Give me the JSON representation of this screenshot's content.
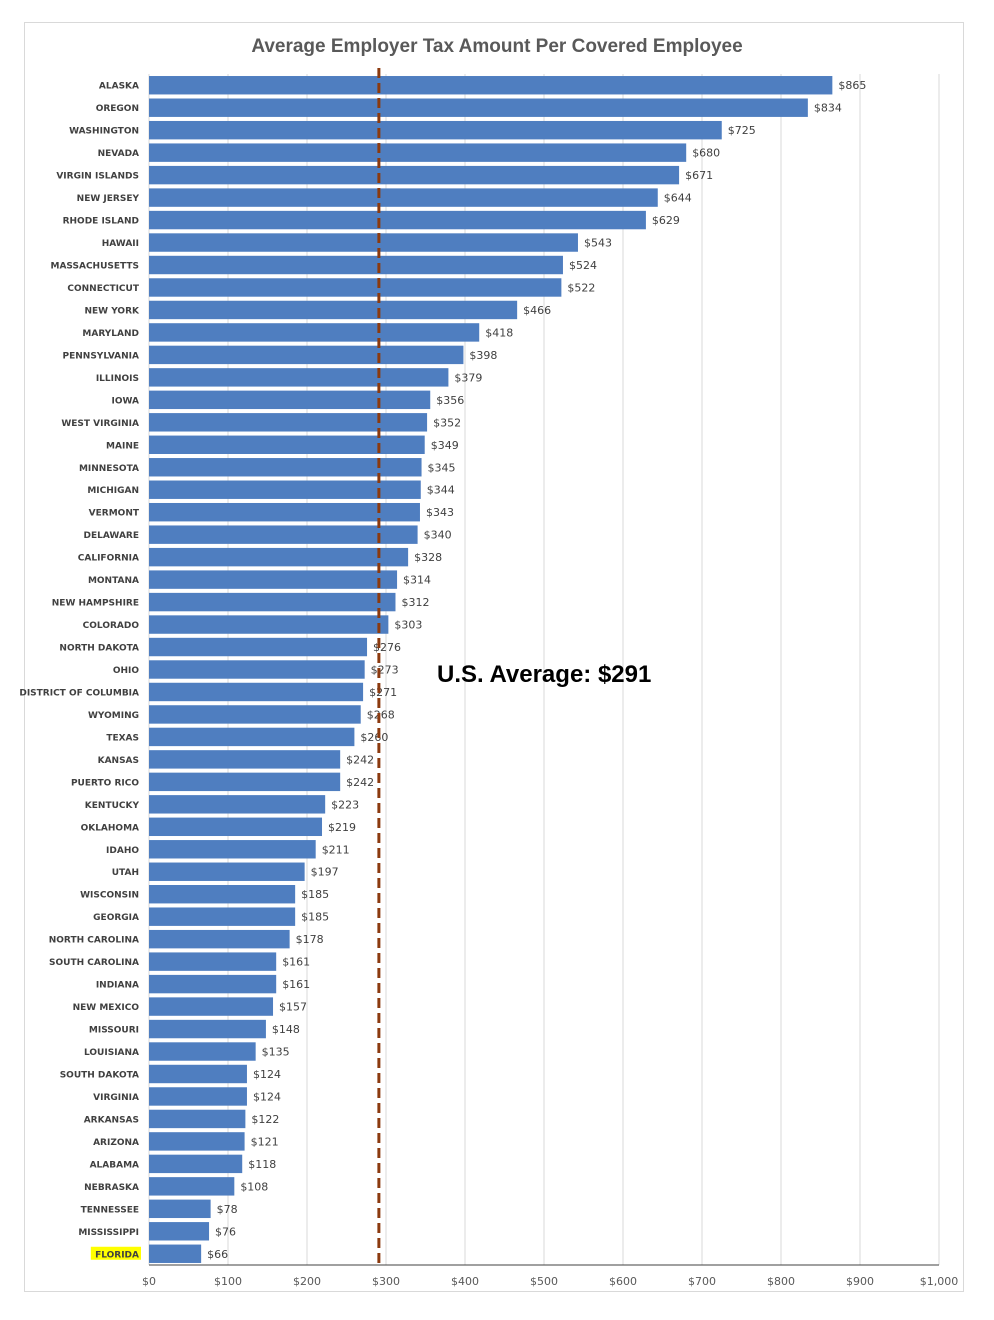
{
  "chart_data": {
    "type": "bar",
    "orientation": "horizontal",
    "title": "Average Employer Tax Amount Per Covered Employee",
    "categories": [
      "ALASKA",
      "OREGON",
      "WASHINGTON",
      "NEVADA",
      "VIRGIN ISLANDS",
      "NEW JERSEY",
      "RHODE ISLAND",
      "HAWAII",
      "MASSACHUSETTS",
      "CONNECTICUT",
      "NEW YORK",
      "MARYLAND",
      "PENNSYLVANIA",
      "ILLINOIS",
      "IOWA",
      "WEST VIRGINIA",
      "MAINE",
      "MINNESOTA",
      "MICHIGAN",
      "VERMONT",
      "DELAWARE",
      "CALIFORNIA",
      "MONTANA",
      "NEW HAMPSHIRE",
      "COLORADO",
      "NORTH DAKOTA",
      "OHIO",
      "DISTRICT OF COLUMBIA",
      "WYOMING",
      "TEXAS",
      "KANSAS",
      "PUERTO RICO",
      "KENTUCKY",
      "OKLAHOMA",
      "IDAHO",
      "UTAH",
      "WISCONSIN",
      "GEORGIA",
      "NORTH CAROLINA",
      "SOUTH CAROLINA",
      "INDIANA",
      "NEW MEXICO",
      "MISSOURI",
      "LOUISIANA",
      "SOUTH DAKOTA",
      "VIRGINIA",
      "ARKANSAS",
      "ARIZONA",
      "ALABAMA",
      "NEBRASKA",
      "TENNESSEE",
      "MISSISSIPPI",
      "FLORIDA"
    ],
    "values": [
      865,
      834,
      725,
      680,
      671,
      644,
      629,
      543,
      524,
      522,
      466,
      418,
      398,
      379,
      356,
      352,
      349,
      345,
      344,
      343,
      340,
      328,
      314,
      312,
      303,
      276,
      273,
      271,
      268,
      260,
      242,
      242,
      223,
      219,
      211,
      197,
      185,
      185,
      178,
      161,
      161,
      157,
      148,
      135,
      124,
      124,
      122,
      121,
      118,
      108,
      78,
      76,
      66
    ],
    "value_labels": [
      "$865",
      "$834",
      "$725",
      "$680",
      "$671",
      "$644",
      "$629",
      "$543",
      "$524",
      "$522",
      "$466",
      "$418",
      "$398",
      "$379",
      "$356",
      "$352",
      "$349",
      "$345",
      "$344",
      "$343",
      "$340",
      "$328",
      "$314",
      "$312",
      "$303",
      "$276",
      "$273",
      "$271",
      "$268",
      "$260",
      "$242",
      "$242",
      "$223",
      "$219",
      "$211",
      "$197",
      "$185",
      "$185",
      "$178",
      "$161",
      "$161",
      "$157",
      "$148",
      "$135",
      "$124",
      "$124",
      "$122",
      "$121",
      "$118",
      "$108",
      "$78",
      "$76",
      "$66"
    ],
    "xlim": [
      0,
      1000
    ],
    "x_ticks": [
      0,
      100,
      200,
      300,
      400,
      500,
      600,
      700,
      800,
      900,
      1000
    ],
    "x_tick_labels": [
      "$0",
      "$100",
      "$200",
      "$300",
      "$400",
      "$500",
      "$600",
      "$700",
      "$800",
      "$900",
      "$1,000"
    ],
    "grid": "vertical",
    "reference_line": {
      "value": 291,
      "label": "U.S. Average: $291",
      "color": "#8B3A0F",
      "style": "dashed"
    },
    "highlighted_category": "FLORIDA",
    "highlight_color": "#FFFF00",
    "bar_color": "#4F7EC0"
  }
}
